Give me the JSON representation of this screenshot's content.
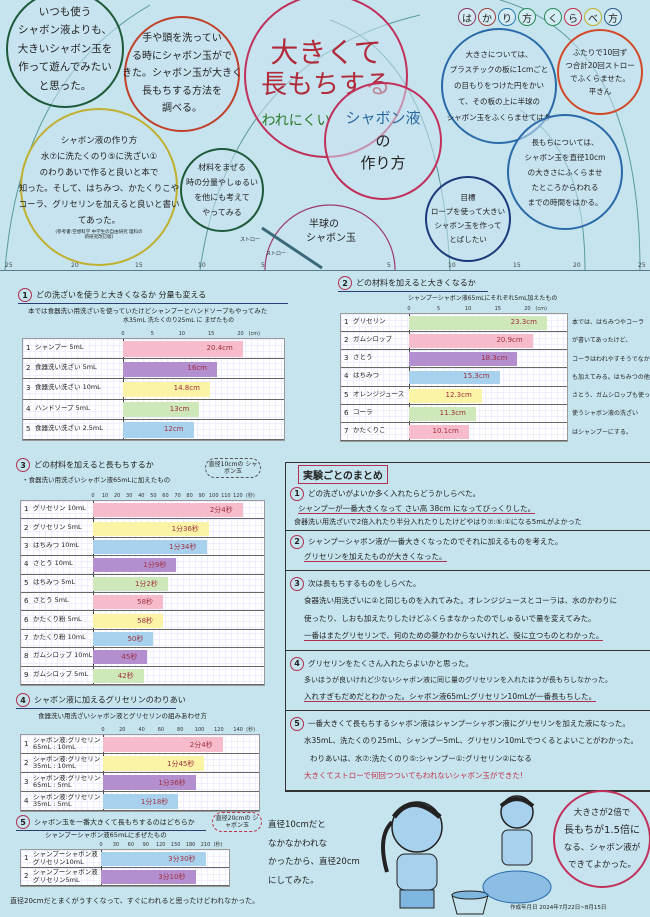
{
  "top": {
    "motivation": [
      "いつも使う",
      "シャボン液よりも、",
      "大きいシャボン玉を",
      "作って遊んでみたい",
      "と思った。"
    ],
    "discovery": [
      "手や頭を洗ってい",
      "る時にシャボン玉がで",
      "きた。シャボン玉が大きく",
      "長もちする方法を",
      "調べる。"
    ],
    "title_line1": "大きくて",
    "title_line2": "長もちする",
    "title_line3": "われにくい",
    "title_sub": [
      "シャボン液",
      "の",
      "作り方"
    ],
    "recipe": [
      "シャボン液の作り方",
      "水⑦に洗たくのり⑤に洗ざい①",
      "のわりあいで作ると良いと本で",
      "知った。そして、はちみつ、かたくりこや",
      "コーラ、グリセリンを加えると良いと書い",
      "てあった。"
    ],
    "reference": "(参考書:空想科学 中学生の自由研究 理科の新研究改訂版)",
    "next_try": [
      "材料をまぜる",
      "時の分量やしゅるい",
      "を他にも考えて",
      "やってみる"
    ],
    "hemisphere_label": [
      "半球の",
      "シャボン玉"
    ],
    "straw_label": "ストロー",
    "rope_label": "ストロー",
    "ruler_ticks_left": [
      "25",
      "20",
      "15",
      "10",
      "5"
    ],
    "ruler_ticks_right": [
      "5",
      "10",
      "15",
      "20",
      "25"
    ],
    "method_heading": [
      "は",
      "か",
      "り",
      "方",
      "く",
      "ら",
      "べ",
      "方"
    ],
    "method_colors": [
      "#8a3a6a",
      "#a04040",
      "#2a7ab0",
      "#2a8a5a",
      "#2a8a5a",
      "#c0304a",
      "#c0b030",
      "#2a5a8a"
    ],
    "measure_size": [
      "大きさについては、",
      "プラスチックの板に1cmごと",
      "の目もりをつけた円をかい",
      "て、その板の上に半球の",
      "シャボン玉をふくらませてはか",
      "る。"
    ],
    "blow_count": [
      "ふたりで10回ず",
      "つ合計20回ストロー",
      "でふくらませた。",
      "平きん"
    ],
    "measure_time": [
      "長もちについては、",
      "シャボン玉を直径10cm",
      "の大きさにふくらませ",
      "たところからわれる",
      "までの時間をはかる。"
    ],
    "goal": [
      "目標",
      "ロープを使って大きい",
      "シャボン玉を作って",
      "とばしたい"
    ]
  },
  "sections": {
    "s1": {
      "num": "1",
      "title": "どの洗ざいを使うと大きくなるか 分量も変える",
      "note": "本では食器洗い用洗ざいを使っていたけどシャンプーとハンドソープもやってみた",
      "subtitle": "水35mL 洗たくのり25mL に まぜたもの"
    },
    "s2": {
      "num": "2",
      "title": "どの材料を加えると大きくなるか",
      "subtitle": "シャンプーシャボン液65mLにそれぞれ5mL加えたもの",
      "side_note": [
        "本では、はちみつやコーラ",
        "が書いてあったけど、",
        "コーラはわれやすそうでなかっ",
        "も加えてみる。はちみつの他に",
        "さとう、ガムシロップも使った。",
        "使うシャボン液の洗ざい",
        "はシャンプーにする。"
      ]
    },
    "s3": {
      "num": "3",
      "title": "どの材料を加えると長もちするか",
      "subtitle": "・食器洗い用洗ざいシャボン液65mLに加えたもの",
      "cloud": "直径10cmの シャボン玉"
    },
    "s4": {
      "num": "4",
      "title": "シャボン液に加えるグリセリンのわりあい",
      "subtitle": "食器洗い用洗ざいシャボン液とグリセリンの組みあわせ方"
    },
    "s5": {
      "num": "5",
      "title": "シャボン玉を一番大きくて長もちするのはどちらか",
      "subtitle": "シャンプーシャボン液65mLにまぜたもの",
      "cloud": "直径20cmの シャボン玉",
      "side_note": [
        "直径10cmだと",
        "なかなかわれな",
        "かったから、直径20cm",
        "にしてみた。"
      ],
      "bottom_note": "直径20cmだとまくがうすくなって、すぐにわれると思ったけどわれなかった。"
    }
  },
  "chart_data": [
    {
      "type": "bar",
      "orientation": "horizontal",
      "unit": "(cm)",
      "xlim": [
        0,
        24
      ],
      "ticks": [
        "0",
        "5",
        "10",
        "15",
        "20"
      ],
      "tick_values": [
        0,
        5,
        10,
        15,
        20
      ],
      "categories": [
        "シャンプー 5mL",
        "食器洗い洗ざい 5mL",
        "食器洗い洗ざい 10mL",
        "ハンドソープ 5mL",
        "食器洗い洗ざい 2.5mL"
      ],
      "values": [
        20.4,
        16,
        14.8,
        13,
        12
      ],
      "labels": [
        "20.4cm",
        "16cm",
        "14.8cm",
        "13cm",
        "12cm"
      ],
      "colors": [
        "#f6bccb",
        "#b48fd0",
        "#fbf3a6",
        "#cfe8b9",
        "#a8d1ee"
      ]
    },
    {
      "type": "bar",
      "orientation": "horizontal",
      "unit": "(cm)",
      "xlim": [
        0,
        25
      ],
      "ticks": [
        "0",
        "5",
        "10",
        "15",
        "20"
      ],
      "tick_values": [
        0,
        5,
        10,
        15,
        20
      ],
      "categories": [
        "グリセリン",
        "ガムシロップ",
        "さとう",
        "はちみつ",
        "オレンジジュース",
        "コーラ",
        "かたくりこ"
      ],
      "values": [
        23.3,
        20.9,
        18.3,
        15.3,
        12.3,
        11.3,
        10.1
      ],
      "labels": [
        "23.3cm",
        "20.9cm",
        "18.3cm",
        "15.3cm",
        "12.3cm",
        "11.3cm",
        "10.1cm"
      ],
      "colors": [
        "#cfe8b9",
        "#f6bccb",
        "#b48fd0",
        "#a8d1ee",
        "#fbf3a6",
        "#cfe8b9",
        "#f6bccb"
      ]
    },
    {
      "type": "bar",
      "orientation": "horizontal",
      "unit": "(秒)",
      "xlim": [
        0,
        130
      ],
      "ticks": [
        "0",
        "10",
        "20",
        "30",
        "40",
        "50",
        "60",
        "70",
        "80",
        "90",
        "100",
        "110",
        "120"
      ],
      "tick_values": [
        0,
        10,
        20,
        30,
        40,
        50,
        60,
        70,
        80,
        90,
        100,
        110,
        120
      ],
      "row_numbers": [
        "1",
        "2",
        "3",
        "4",
        "5",
        "6",
        "6",
        "7",
        "8",
        "9"
      ],
      "categories": [
        "グリセリン 10mL",
        "グリセリン 5mL",
        "はちみつ 10mL",
        "さとう 10mL",
        "はちみつ 5mL",
        "さとう 5mL",
        "かたくり粉 5mL",
        "かたくり粉 10mL",
        "ガムシロップ 10mL",
        "ガムシロップ 5mL"
      ],
      "values": [
        124,
        96,
        94,
        69,
        62,
        58,
        58,
        50,
        45,
        42
      ],
      "labels": [
        "2分4秒",
        "1分36秒",
        "1分34秒",
        "1分9秒",
        "1分2秒",
        "58秒",
        "58秒",
        "50秒",
        "45秒",
        "42秒"
      ],
      "colors": [
        "#f6bccb",
        "#fbf3a6",
        "#a8d1ee",
        "#b48fd0",
        "#cfe8b9",
        "#f6bccb",
        "#fbf3a6",
        "#a8d1ee",
        "#b48fd0",
        "#cfe8b9"
      ]
    },
    {
      "type": "bar",
      "orientation": "horizontal",
      "unit": "(秒)",
      "xlim": [
        0,
        145
      ],
      "ticks": [
        "0",
        "20",
        "40",
        "60",
        "80",
        "100",
        "120",
        "140"
      ],
      "tick_values": [
        0,
        20,
        40,
        60,
        80,
        100,
        120,
        140
      ],
      "categories": [
        "シャボン液:グリセリン\n65mL : 10mL",
        "シャボン液:グリセリン\n35mL : 10mL",
        "シャボン液:グリセリン\n65mL : 5mL",
        "シャボン液:グリセリン\n35mL : 5mL"
      ],
      "values": [
        124,
        105,
        96,
        78
      ],
      "labels": [
        "2分4秒",
        "1分45秒",
        "1分36秒",
        "1分18秒"
      ],
      "colors": [
        "#f6bccb",
        "#fbf3a6",
        "#b48fd0",
        "#a8d1ee"
      ]
    },
    {
      "type": "bar",
      "orientation": "horizontal",
      "unit": "(秒)",
      "xlim": [
        0,
        225
      ],
      "ticks": [
        "0",
        "30",
        "60",
        "90",
        "120",
        "150",
        "180",
        "210"
      ],
      "tick_values": [
        0,
        30,
        60,
        90,
        120,
        150,
        180,
        210
      ],
      "categories": [
        "シャンプーシャボン液\nグリセリン10mL",
        "シャンプーシャボン液\nグリセリン5mL"
      ],
      "values": [
        210,
        190
      ],
      "labels": [
        "3分30秒",
        "3分10秒"
      ],
      "colors": [
        "#a8d1ee",
        "#b48fd0"
      ]
    }
  ],
  "summary": {
    "heading": "実験ごとのまとめ",
    "items": [
      {
        "num": "1",
        "lines": [
          "どの洗ざいがよいか多く入れたらどうかしらべた。",
          "シャンプーが一番大きくなって さい高 38cm になってびっくりした。",
          "食器洗い用洗ざいで2倍入れたり半分入れたりしたけどやはり⑦:⑤:①になる5mLがよかった"
        ]
      },
      {
        "num": "2",
        "lines": [
          "シャンプーシャボン液が一番大きくなったのでそれに加えるものを考えた。",
          "グリセリンを加えたものが大きくなった。"
        ]
      },
      {
        "num": "3",
        "lines": [
          "次は長もちするものをしらべた。",
          "食器洗い用洗ざいに②と同じものを入れてみた。オレンジジュースとコーラは、水のかわりに",
          "使ったり、しおも加えたりしたけどふくらまなかったのでしゅるいで量を変えてみた。",
          "一番はまたグリセリンで、何のための薬かわからないけれど、役に立つものとわかった。"
        ]
      },
      {
        "num": "4",
        "lines": [
          "グリセリンをたくさん入れたらよいかと思った。",
          "多いほうが良いけれど少ないシャボン液に同じ量のグリセリンを入れたほうが長もちしなかった。",
          "入れすぎもだめだとわかった。シャボン液65mL:グリセリン10mLが一番長もちした。"
        ]
      },
      {
        "num": "5",
        "lines": [
          "一番大きくて長もちするシャボン液はシャンプーシャボン液にグリセリンを加えた液になった。",
          "水35mL、洗たくのり25mL、シャンプー5mL、グリセリン10mLでつくるとよいことがわかった。",
          "わりあいは、水⑦:洗たくのり⑤:シャンプー①:グリセリン②になる",
          "大きくてストローで何回つついてもわれないシャボン玉ができた!"
        ]
      }
    ]
  },
  "conclusion": [
    "大きさが2倍で",
    "長もちが1.5倍に",
    "なる、シャボン液が",
    "できてよかった。"
  ],
  "date": "作成年月日 2024年7月22日~8月15日"
}
